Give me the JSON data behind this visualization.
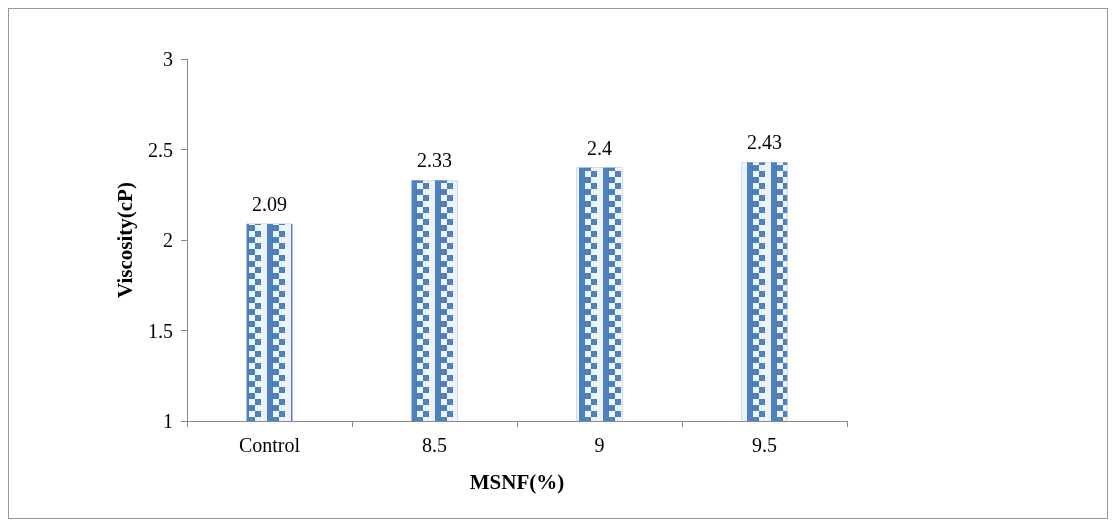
{
  "chart_data": {
    "type": "bar",
    "categories": [
      "Control",
      "8.5",
      "9",
      "9.5"
    ],
    "values": [
      2.09,
      2.33,
      2.4,
      2.43
    ],
    "color": "#4f81bd",
    "ylim": [
      1,
      3
    ],
    "yticks": [
      1,
      1.5,
      2,
      2.5,
      3
    ],
    "xlabel": "MSNF(%)",
    "ylabel": "Viscosity(cP)",
    "data_labels": true,
    "grid": false
  }
}
